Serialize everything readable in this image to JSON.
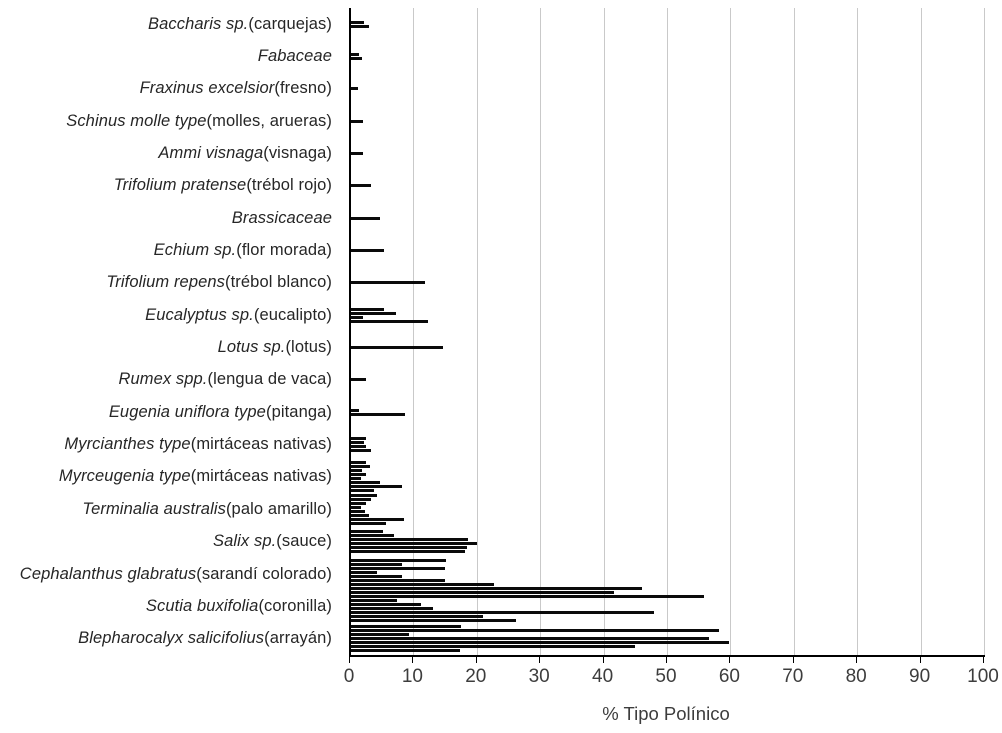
{
  "chart_data": {
    "type": "bar",
    "orientation": "horizontal",
    "title": "",
    "xlabel": "% Tipo Polínico",
    "ylabel": "",
    "xlim": [
      0,
      100
    ],
    "xticks": [
      0,
      10,
      20,
      30,
      40,
      50,
      60,
      70,
      80,
      90,
      100
    ],
    "grid": "vertical-gridlines-light-gray",
    "legend": "none",
    "bar_color": "#0a0a0a",
    "axis_color": "#000000",
    "note": "multiple thin bars per pollen type (one per sample)",
    "categories": [
      {
        "name": "Baccharis sp.",
        "common": " (carquejas)",
        "values": [
          2.0,
          2.9
        ]
      },
      {
        "name": "Fabaceae",
        "common": "",
        "values": [
          1.3,
          1.7
        ]
      },
      {
        "name": "Fraxinus excelsior",
        "common": " (fresno)",
        "values": [
          1.1
        ]
      },
      {
        "name": "Schinus molle type",
        "common": " (molles, arueras)",
        "values": [
          1.9
        ]
      },
      {
        "name": "Ammi visnaga",
        "common": " (visnaga)",
        "values": [
          1.9
        ]
      },
      {
        "name": "Trifolium pratense",
        "common": " (trébol rojo)",
        "values": [
          3.2
        ]
      },
      {
        "name": "Brassicaceae",
        "common": "",
        "values": [
          4.6
        ]
      },
      {
        "name": "Echium sp.",
        "common": " (flor morada)",
        "values": [
          5.2
        ]
      },
      {
        "name": "Trifolium repens",
        "common": " (trébol blanco)",
        "values": [
          11.6
        ]
      },
      {
        "name": "Eucalyptus sp.",
        "common": " (eucalipto)",
        "values": [
          5.2,
          7.1,
          1.9,
          12.2
        ]
      },
      {
        "name": "Lotus sp.",
        "common": " (lotus)",
        "values": [
          14.5
        ]
      },
      {
        "name": "Rumex spp.",
        "common": " (lengua de vaca)",
        "values": [
          2.3
        ]
      },
      {
        "name": "Eugenia uniflora type",
        "common": " (pitanga)",
        "values": [
          1.3,
          8.5
        ]
      },
      {
        "name": "Myrcianthes type",
        "common": " (mirtáceas nativas)",
        "values": [
          2.4,
          2.0,
          2.4,
          3.1
        ]
      },
      {
        "name": "Myrceugenia type",
        "common": " (mirtáceas nativas)",
        "values": [
          2.4,
          3.0,
          1.8,
          2.3,
          1.5,
          4.5,
          8.1,
          3.6
        ]
      },
      {
        "name": "Terminalia australis",
        "common": " (palo amarillo)",
        "values": [
          4.1,
          3.2,
          2.4,
          1.6,
          2.2,
          2.8,
          8.4,
          5.5
        ]
      },
      {
        "name": "Salix sp.",
        "common": " (sauce)",
        "values": [
          5.0,
          6.8,
          18.5,
          19.8,
          18.3,
          18.0
        ]
      },
      {
        "name": "Cephalanthus glabratus",
        "common": " (sarandí colorado)",
        "values": [
          15.0,
          8.1,
          14.8,
          4.1,
          8.1,
          14.8,
          22.5,
          45.9
        ]
      },
      {
        "name": "Scutia buxifolia",
        "common": " (coronilla)",
        "values": [
          41.5,
          55.7,
          7.3,
          11.1,
          12.9,
          47.8,
          20.8,
          26.0
        ]
      },
      {
        "name": "Blepharocalyx salicifolius",
        "common": " (arrayán)",
        "values": [
          17.4,
          58.1,
          9.2,
          56.5,
          59.7,
          44.8,
          17.2
        ]
      }
    ]
  }
}
